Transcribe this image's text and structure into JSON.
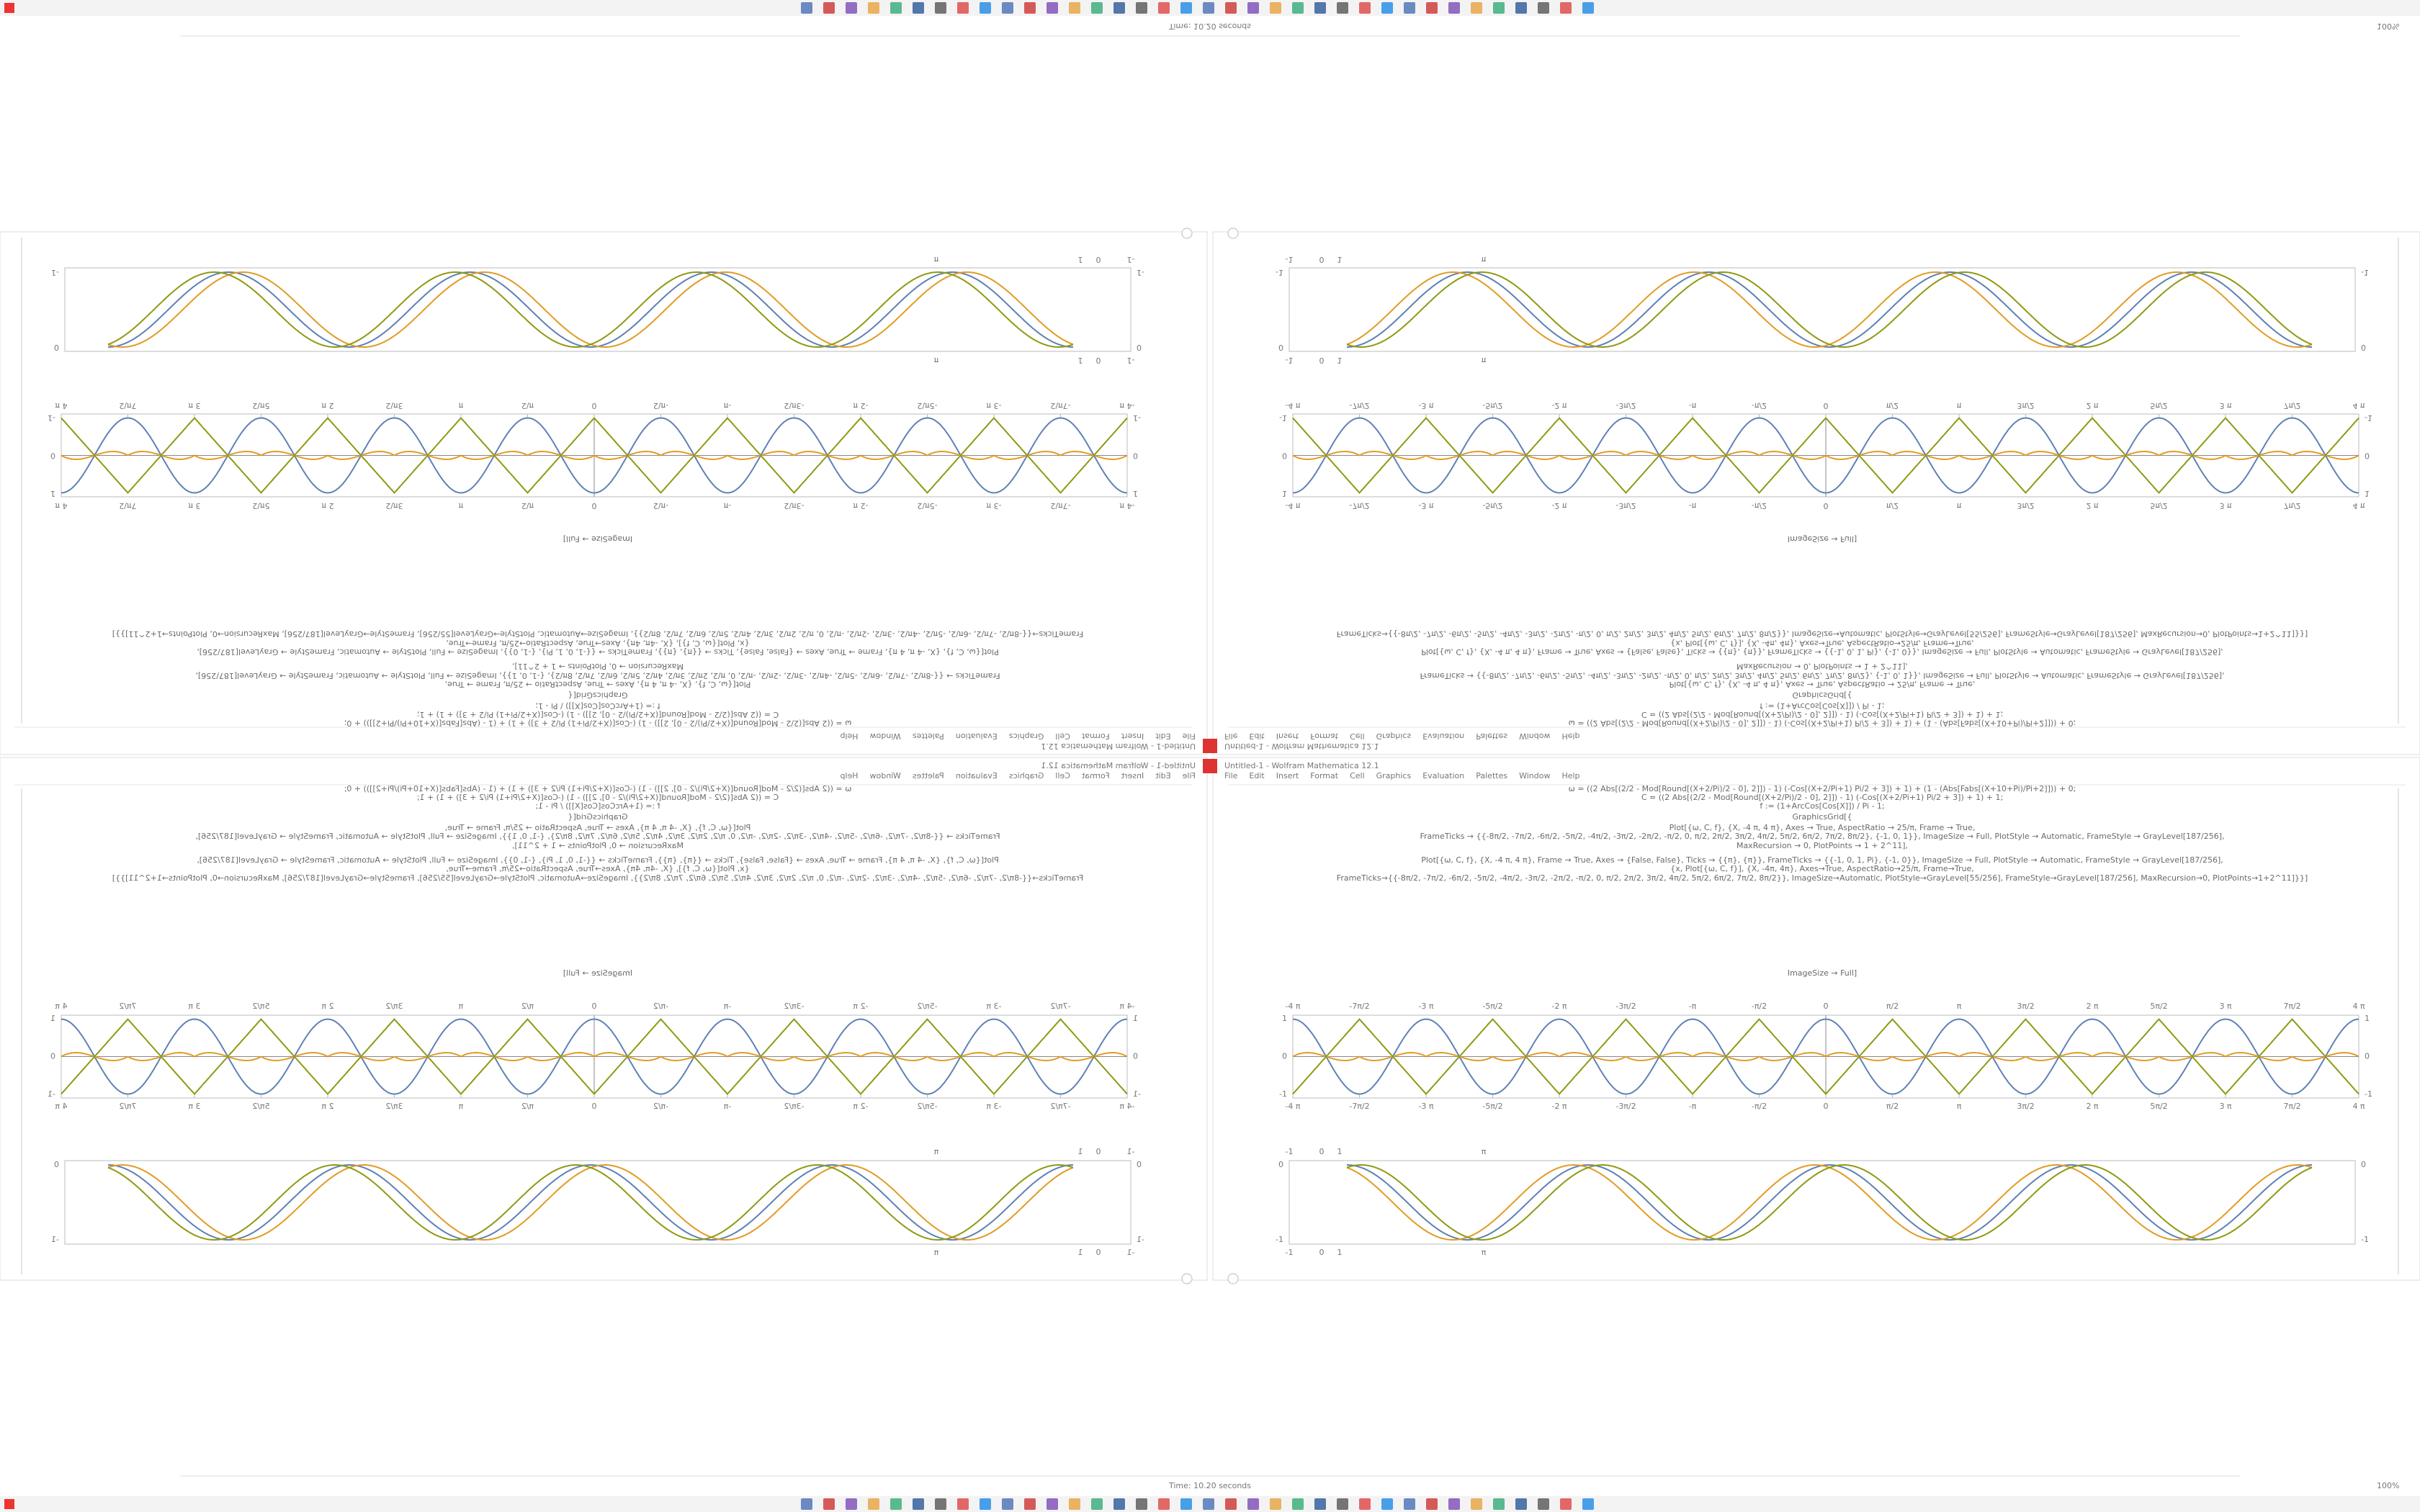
{
  "window": {
    "title": "Untitled-1 - Wolfram Mathematica 12.1",
    "menu": [
      "File",
      "Edit",
      "Insert",
      "Format",
      "Cell",
      "Graphics",
      "Evaluation",
      "Palettes",
      "Window",
      "Help"
    ]
  },
  "notebook": {
    "code": [
      "ω = ((2 Abs[(2/2 - Mod[Round[(X+2/Pi)/2 - 0], 2]]) - 1) (-Cos[(X+2/Pi+1) Pi/2 + 3]) + 1) + (1 - (Abs[Fabs[(X+10+Pi)/Pi+2]])) + 0;",
      "C = ((2 Abs[(2/2 - Mod[Round[(X+2/Pi)/2 - 0], 2]]) - 1) (-Cos[(X+2/Pi+1) Pi/2 + 3]) + 1) + 1;",
      "f := (1+ArcCos[Cos[X]]) / Pi - 1;",
      "GraphicsGrid[{",
      "Plot[{ω, C, f}, {X, -4 π, 4 π}, Axes → True, AspectRatio → 25/π, Frame → True,",
      "FrameTicks → {{-8π/2, -7π/2, -6π/2, -5π/2, -4π/2, -3π/2, -2π/2, -π/2, 0, π/2, 2π/2, 3π/2, 4π/2, 5π/2, 6π/2, 7π/2, 8π/2}, {-1, 0, 1}}, ImageSize → Full, PlotStyle → Automatic, FrameStyle → GrayLevel[187/256],",
      "MaxRecursion → 0, PlotPoints → 1 + 2^11],",
      "Plot[{ω, C, f}, {X, -4 π, 4 π}, Frame → True, Axes → {False, False}, Ticks → {{π}, {π}}, FrameTicks → {{-1, 0, 1, Pi}, {-1, 0}}, ImageSize → Full, PlotStyle → Automatic, FrameStyle → GrayLevel[187/256],",
      "{x, Plot[{ω, C, f}], {X, -4π, 4π}, Axes→True, AspectRatio→25/π, Frame→True,",
      "FrameTicks→{{-8π/2, -7π/2, -6π/2, -5π/2, -4π/2, -3π/2, -2π/2, -π/2, 0, π/2, 2π/2, 3π/2, 4π/2, 5π/2, 6π/2, 7π/2, 8π/2}}, ImageSize→Automatic, PlotStyle→GrayLevel[55/256], FrameStyle→GrayLevel[187/256], MaxRecursion→0, PlotPoints→1+2^11]}}]"
    ],
    "footer": "ImageSize → Full]"
  },
  "plots": {
    "wave_xticks": [
      "-4 π",
      "-7π/2",
      "-3 π",
      "-5π/2",
      "-2 π",
      "-3π/2",
      "-π",
      "-π/2",
      "0",
      "π/2",
      "π",
      "3π/2",
      "2 π",
      "5π/2",
      "3 π",
      "7π/2",
      "4 π"
    ],
    "wave_yticks": [
      "1",
      "0",
      "-1"
    ],
    "sine_xticks": [
      "-1",
      "0",
      "1",
      "π"
    ],
    "sine_yticks": [
      "0",
      "-1"
    ],
    "colors": [
      "#5e81b5",
      "#e19c24",
      "#8f9a12"
    ]
  },
  "status": {
    "time": "Time: 10.20 seconds",
    "zoom": "100%"
  }
}
